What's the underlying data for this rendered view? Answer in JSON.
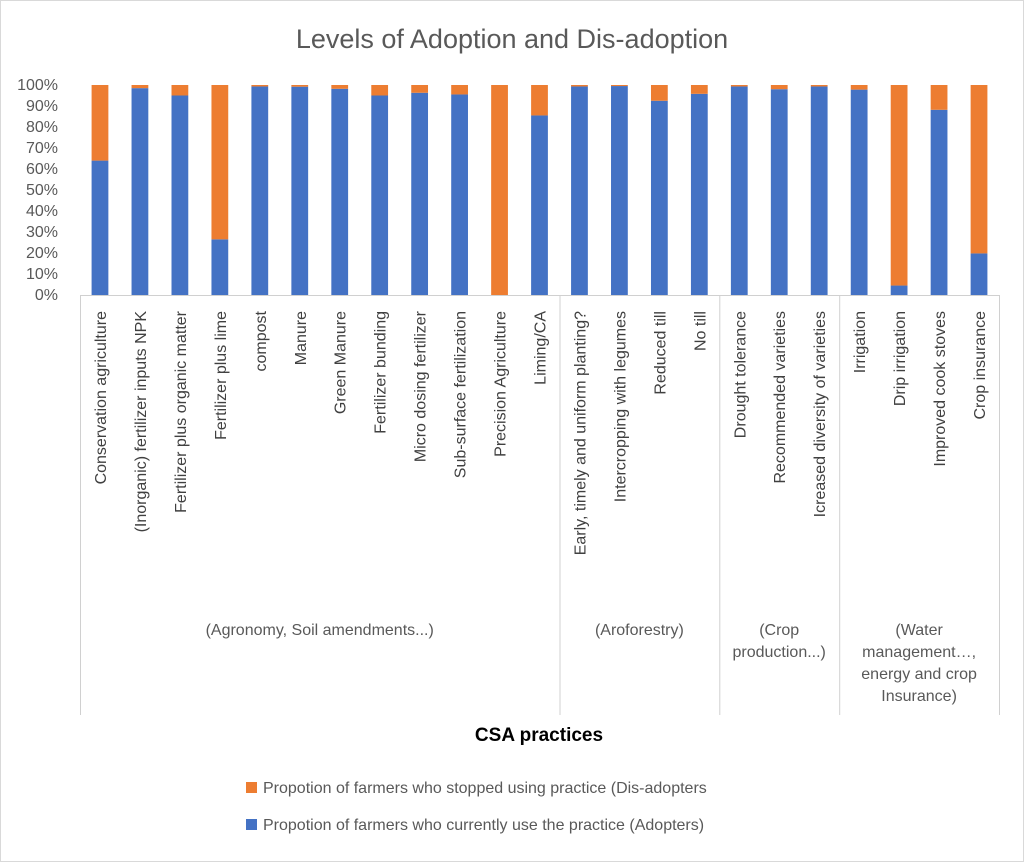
{
  "chart_data": {
    "type": "bar",
    "stacked": true,
    "percent": true,
    "title": "Levels of Adoption and Dis-adoption",
    "xlabel": "CSA practices",
    "ylabel": "",
    "ylim": [
      0,
      100
    ],
    "yticks": [
      "0%",
      "10%",
      "20%",
      "30%",
      "40%",
      "50%",
      "60%",
      "70%",
      "80%",
      "90%",
      "100%"
    ],
    "grid": false,
    "legend_position": "bottom",
    "categories": [
      "Conservation agriculture",
      "(Inorganic) fertilizer inputs NPK",
      "Fertilizer plus organic matter",
      "Fertilizer plus lime",
      "compost",
      "Manure",
      "Green Manure",
      "Fertilizer bunding",
      "Micro dosing fertilizer",
      "Sub-surface fertilization",
      "Precision Agriculture",
      "Liming/CA",
      "Early, timely and uniform planting?",
      "Intercropping with legumes",
      "Reduced till",
      "No till",
      "Drought tolerance",
      "Recommended varieties",
      "Icreased diversity of varieties",
      "Irrigation",
      "Drip irrigation",
      "Improved cook stoves",
      "Crop insurance"
    ],
    "groups": [
      {
        "label": [
          "(Agronomy, Soil amendments...)"
        ],
        "count": 12
      },
      {
        "label": [
          "(Aroforestry)"
        ],
        "count": 4
      },
      {
        "label": [
          "(Crop",
          "production...)"
        ],
        "count": 3
      },
      {
        "label": [
          "(Water",
          "management…,",
          "energy and crop",
          "Insurance)"
        ],
        "count": 4
      }
    ],
    "series": [
      {
        "name": "Propotion of farmers who currently use the practice (Adopters)",
        "color": "#4472c4",
        "values": [
          64,
          98.5,
          95,
          26.5,
          99.3,
          99.2,
          98.2,
          95,
          96.3,
          95.5,
          0,
          85.5,
          99.3,
          99.5,
          92.5,
          95.8,
          99.3,
          98,
          99.3,
          97.8,
          4.5,
          88.2,
          19.8
        ]
      },
      {
        "name": "Propotion of farmers who stopped using practice (Dis-adopters",
        "color": "#ed7d31",
        "values": [
          36,
          1.5,
          5,
          73.5,
          0.7,
          0.8,
          1.8,
          5,
          3.7,
          4.5,
          100,
          14.5,
          0.7,
          0.5,
          7.5,
          4.2,
          0.7,
          2,
          0.7,
          2.2,
          95.5,
          11.8,
          80.2
        ]
      }
    ]
  }
}
